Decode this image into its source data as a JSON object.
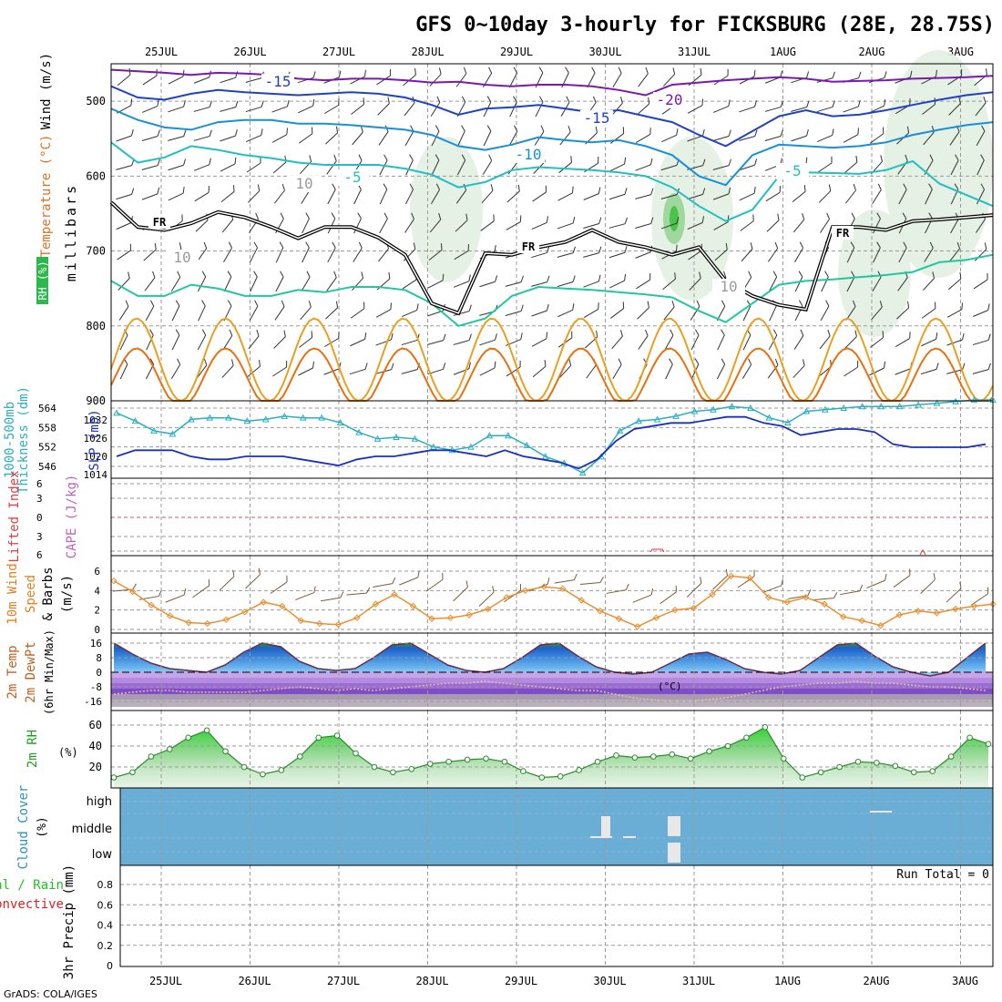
{
  "title": "GFS 0~10day 3-hourly for FICKSBURG (28E, 28.75S)",
  "footer": "GrADS: COLA/IGES",
  "colors": {
    "grid": "#9a9a9a",
    "temp_m5": "#20c0c0",
    "temp_m10": "#1890d8",
    "temp_m15": "#2040c8",
    "temp_m20": "#7a18b0",
    "temp_warm1": "#e8a020",
    "temp_warm2": "#e87010",
    "freeze": "#000000",
    "thickness": "#2ab0c0",
    "slp": "#1830c0",
    "wind10": "#e89030",
    "cloud": "#6aaed6",
    "rh2m": "#30c030",
    "lifted": "#e03030"
  },
  "chart_data": {
    "dates": [
      "25JUL",
      "26JUL",
      "27JUL",
      "28JUL",
      "29JUL",
      "30JUL",
      "31JUL",
      "1AUG",
      "2AUG",
      "3AUG"
    ],
    "panels": [
      {
        "id": "upper_air",
        "type": "contour",
        "ylabel": [
          "Wind (m/s)",
          "Temperature (°C)",
          "RH (%)",
          "millibars"
        ],
        "yticks": [
          500,
          600,
          700,
          800,
          900
        ],
        "yrange": [
          450,
          900
        ],
        "temperature_contour_labels": [
          "-15",
          "-20",
          "-15",
          "-10",
          "-5",
          "-5",
          "10",
          "10",
          "10"
        ],
        "freezing_label": "FR",
        "freezing_level_mb": [
          635,
          668,
          672,
          663,
          648,
          655,
          668,
          683,
          668,
          668,
          682,
          705,
          770,
          783,
          703,
          705,
          695,
          688,
          672,
          688,
          695,
          705,
          695,
          740,
          760,
          772,
          778,
          668,
          668,
          672,
          660,
          658,
          655,
          652
        ],
        "levels": {
          "m20": [
            458,
            460,
            462,
            465,
            462,
            463,
            465,
            470,
            472,
            470,
            470,
            472,
            475,
            474,
            478,
            480,
            478,
            478,
            480,
            485,
            492,
            478,
            475,
            472,
            470,
            468,
            470,
            474,
            473,
            472,
            470,
            469,
            468,
            466
          ],
          "m15": [
            480,
            495,
            498,
            490,
            485,
            488,
            490,
            492,
            490,
            488,
            490,
            495,
            505,
            518,
            510,
            508,
            505,
            510,
            515,
            512,
            520,
            528,
            545,
            560,
            540,
            520,
            512,
            520,
            518,
            512,
            505,
            498,
            492,
            488
          ],
          "m10": [
            510,
            525,
            535,
            538,
            528,
            525,
            525,
            530,
            530,
            532,
            535,
            538,
            545,
            560,
            565,
            558,
            548,
            552,
            555,
            552,
            560,
            572,
            600,
            612,
            572,
            558,
            560,
            562,
            560,
            555,
            545,
            538,
            532,
            528
          ],
          "m5": [
            555,
            582,
            575,
            560,
            565,
            572,
            576,
            582,
            585,
            585,
            585,
            590,
            598,
            615,
            608,
            592,
            588,
            590,
            592,
            595,
            600,
            615,
            640,
            660,
            645,
            600,
            595,
            596,
            597,
            592,
            580,
            610,
            625,
            640
          ],
          "p0": [
            740,
            760,
            760,
            745,
            750,
            760,
            760,
            752,
            755,
            748,
            748,
            752,
            770,
            800,
            790,
            760,
            748,
            750,
            752,
            755,
            758,
            762,
            780,
            795,
            770,
            745,
            740,
            738,
            735,
            732,
            728,
            715,
            712,
            705
          ]
        }
      },
      {
        "id": "thickness_slp",
        "type": "line",
        "ylabel_left": [
          "1000-500mb",
          "Thickness (dm)"
        ],
        "ylabel_right": [
          "SLP (mb)"
        ],
        "yticks_left": [
          546,
          552,
          558,
          564
        ],
        "yticks_right": [
          1014,
          1020,
          1026,
          1032
        ],
        "series": [
          {
            "name": "thickness",
            "values": [
              562.5,
              560,
              557,
              556,
              560.5,
              561,
              561,
              560,
              560.5,
              561.5,
              561,
              561,
              559.5,
              556.5,
              554.5,
              555,
              554.5,
              552,
              551,
              552,
              555.5,
              555.5,
              552.5,
              549,
              547,
              544,
              549,
              557,
              560,
              560.5,
              561.5,
              563,
              563.5,
              564.5,
              564,
              561,
              559.5,
              563,
              563.5,
              564,
              564.5,
              564.5,
              564.5,
              565,
              565.5,
              566,
              566.5,
              566.5
            ]
          },
          {
            "name": "slp",
            "values": [
              1020,
              1022,
              1022,
              1022,
              1020,
              1019,
              1019,
              1020,
              1020,
              1020,
              1019,
              1018,
              1017,
              1019,
              1020,
              1020,
              1021,
              1022,
              1022,
              1021,
              1020,
              1022,
              1020,
              1019,
              1018,
              1016,
              1019,
              1025,
              1029,
              1030,
              1031,
              1031,
              1032,
              1033,
              1033,
              1031,
              1030,
              1027,
              1028,
              1029,
              1029,
              1028,
              1024,
              1023,
              1023,
              1023,
              1023,
              1024
            ]
          }
        ]
      },
      {
        "id": "cape_li",
        "type": "line",
        "ylabel": [
          "Lifted Index",
          "CAPE (J/kg)"
        ],
        "yticks": [
          "6",
          "3",
          "0",
          "3",
          "6"
        ]
      },
      {
        "id": "wind10",
        "type": "line",
        "ylabel": [
          "10m Wind",
          "Speed",
          "& Barbs",
          "(m/s)"
        ],
        "yticks": [
          0,
          2,
          4,
          6
        ],
        "series": [
          {
            "name": "10m wind speed",
            "values": [
              5.0,
              3.9,
              2.5,
              1.4,
              0.7,
              0.6,
              1.0,
              1.8,
              2.8,
              2.4,
              0.9,
              0.6,
              0.5,
              1.2,
              2.6,
              3.6,
              2.4,
              1.1,
              1.2,
              1.5,
              2.1,
              3.3,
              4.0,
              4.4,
              4.2,
              3.0,
              1.9,
              1.1,
              0.3,
              1.2,
              2.0,
              2.2,
              3.6,
              5.5,
              5.3,
              3.3,
              2.8,
              3.3,
              2.6,
              1.3,
              0.9,
              0.4,
              1.5,
              1.9,
              1.7,
              2.1,
              2.4,
              2.6
            ]
          }
        ]
      },
      {
        "id": "temp2m",
        "type": "area",
        "ylabel": [
          "2m Temp",
          "2m DewPt",
          "(6hr Min/Max)"
        ],
        "unit": "(°C)",
        "yticks": [
          -16,
          -8,
          0,
          8,
          16
        ],
        "series": [
          {
            "name": "temp",
            "values": [
              16,
              10,
              5,
              2,
              1,
              0,
              4,
              11,
              16,
              14,
              6,
              2,
              1,
              2,
              8,
              15,
              16,
              10,
              4,
              1,
              0,
              2,
              8,
              15,
              16,
              9,
              3,
              0,
              -1,
              0,
              5,
              10,
              11,
              7,
              2,
              0,
              -1,
              1,
              8,
              15,
              16,
              9,
              3,
              0,
              -2,
              0,
              8,
              16
            ]
          },
          {
            "name": "dewpoint",
            "values": [
              -12,
              -11,
              -10,
              -10,
              -11,
              -11,
              -11,
              -11,
              -10,
              -9,
              -8,
              -9,
              -10,
              -9,
              -10,
              -9,
              -8,
              -7,
              -6,
              -6,
              -5,
              -6,
              -7,
              -8,
              -9,
              -10,
              -10,
              -12,
              -14,
              -15,
              -16,
              -16,
              -15,
              -14,
              -12,
              -10,
              -8,
              -7,
              -6,
              -6,
              -5,
              -6,
              -6,
              -7,
              -8,
              -8,
              -9,
              -10
            ]
          }
        ]
      },
      {
        "id": "rh2m",
        "type": "area",
        "ylabel": [
          "2m RH"
        ],
        "unit": "(%)",
        "yticks": [
          20,
          40,
          60
        ],
        "series": [
          {
            "name": "rh",
            "values": [
              10,
              15,
              30,
              37,
              48,
              55,
              35,
              20,
              13,
              17,
              30,
              48,
              50,
              33,
              20,
              15,
              18,
              23,
              25,
              27,
              28,
              25,
              16,
              10,
              11,
              17,
              25,
              31,
              29,
              30,
              32,
              28,
              35,
              40,
              48,
              58,
              28,
              10,
              15,
              20,
              25,
              24,
              21,
              15,
              16,
              30,
              48,
              42
            ]
          }
        ]
      },
      {
        "id": "cloud",
        "type": "bar",
        "ylabel": [
          "Cloud Cover",
          "(%)"
        ],
        "yticks": [
          "high",
          "middle",
          "low"
        ]
      },
      {
        "id": "precip",
        "type": "bar",
        "ylabel": [
          "3hr Precip (mm)"
        ],
        "legend": [
          "Total / Rain",
          "Convective"
        ],
        "yticks": [
          0,
          0.2,
          0.4,
          0.6,
          0.8
        ],
        "run_total": "Run Total = 0",
        "values": []
      }
    ]
  }
}
